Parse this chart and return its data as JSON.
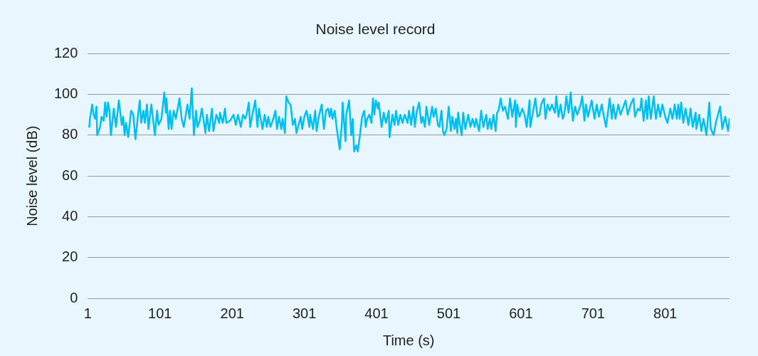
{
  "chart_data": {
    "type": "line",
    "title": "Noise level record",
    "xlabel": "Time (s)",
    "ylabel": "Noise level (dB)",
    "xlim": [
      1,
      890
    ],
    "xticks": [
      1,
      101,
      201,
      301,
      401,
      501,
      601,
      701,
      801
    ],
    "ylim": [
      0,
      120
    ],
    "yticks": [
      0,
      20,
      40,
      60,
      80,
      100,
      120
    ],
    "grid": "y",
    "legend": false,
    "marker": "none",
    "line_style": "solid",
    "series": [
      {
        "color": "#00bff3",
        "x": [
          3,
          4,
          7,
          9,
          11,
          13,
          14,
          18,
          20,
          23,
          25,
          27,
          29,
          31,
          33,
          37,
          40,
          44,
          48,
          50,
          52,
          54,
          57,
          61,
          64,
          67,
          70,
          73,
          75,
          78,
          80,
          83,
          85,
          89,
          94,
          97,
          99,
          103,
          107,
          109,
          110,
          113,
          115,
          117,
          120,
          123,
          128,
          131,
          134,
          139,
          142,
          145,
          148,
          151,
          153,
          156,
          159,
          164,
          166,
          169,
          173,
          175,
          179,
          183,
          184,
          188,
          191,
          193,
          198,
          203,
          206,
          209,
          213,
          216,
          219,
          221,
          224,
          226,
          229,
          233,
          236,
          238,
          243,
          246,
          249,
          251,
          254,
          258,
          261,
          263,
          266,
          269,
          271,
          274,
          276,
          279,
          282,
          285,
          288,
          290,
          293,
          296,
          298,
          301,
          304,
          308,
          309,
          313,
          316,
          318,
          321,
          325,
          328,
          331,
          334,
          336,
          338,
          340,
          343,
          346,
          350,
          353,
          354,
          358,
          359,
          363,
          366,
          368,
          370,
          373,
          375,
          378,
          381,
          384,
          386,
          388,
          391,
          394,
          396,
          398,
          400,
          403,
          404,
          408,
          411,
          414,
          418,
          419,
          423,
          426,
          428,
          431,
          434,
          437,
          440,
          444,
          446,
          449,
          452,
          454,
          457,
          460,
          463,
          465,
          468,
          470,
          474,
          478,
          480,
          483,
          486,
          488,
          491,
          493,
          495,
          498,
          501,
          504,
          506,
          509,
          511,
          513,
          514,
          517,
          519,
          521,
          524,
          528,
          531,
          534,
          537,
          539,
          543,
          546,
          549,
          553,
          555,
          558,
          560,
          563,
          566,
          568,
          570,
          573,
          576,
          579,
          583,
          586,
          589,
          593,
          594,
          596,
          599,
          603,
          606,
          609,
          613,
          614,
          618,
          621,
          624,
          627,
          629,
          633,
          635,
          638,
          641,
          644,
          648,
          650,
          653,
          656,
          659,
          661,
          664,
          667,
          670,
          673,
          676,
          679,
          683,
          686,
          689,
          691,
          694,
          699,
          703,
          706,
          709,
          713,
          716,
          719,
          724,
          727,
          729,
          732,
          736,
          739,
          746,
          749,
          753,
          757,
          759,
          763,
          766,
          768,
          771,
          774,
          776,
          778,
          781,
          785,
          788,
          791,
          794,
          797,
          801,
          804,
          808,
          811,
          814,
          817,
          819,
          821,
          823,
          826,
          829,
          833,
          836,
          839,
          843,
          844,
          848,
          851,
          854,
          858,
          862,
          864,
          868,
          871,
          874,
          877,
          880,
          884,
          888,
          890
        ],
        "values": [
          84,
          88,
          95,
          90,
          88,
          94,
          80,
          84,
          89,
          87,
          96,
          89,
          96,
          92,
          80,
          93,
          84,
          97,
          85,
          89,
          80,
          86,
          79,
          92,
          90,
          78,
          88,
          97,
          86,
          92,
          86,
          95,
          83,
          95,
          80,
          92,
          85,
          88,
          101,
          91,
          98,
          83,
          92,
          83,
          92,
          88,
          98,
          88,
          84,
          95,
          88,
          103,
          80,
          92,
          84,
          87,
          93,
          81,
          90,
          82,
          93,
          82,
          90,
          86,
          91,
          86,
          93,
          86,
          87,
          90,
          85,
          90,
          84,
          90,
          88,
          90,
          96,
          84,
          90,
          97,
          84,
          93,
          83,
          90,
          84,
          89,
          84,
          88,
          92,
          83,
          89,
          83,
          88,
          81,
          99,
          96,
          95,
          85,
          88,
          81,
          85,
          89,
          83,
          89,
          92,
          84,
          90,
          83,
          92,
          82,
          89,
          95,
          83,
          92,
          93,
          89,
          93,
          88,
          92,
          83,
          73,
          86,
          96,
          77,
          90,
          97,
          80,
          88,
          72,
          75,
          72,
          80,
          89,
          92,
          84,
          88,
          90,
          86,
          98,
          90,
          97,
          93,
          96,
          84,
          91,
          86,
          92,
          79,
          90,
          85,
          92,
          85,
          90,
          86,
          90,
          86,
          92,
          85,
          94,
          84,
          92,
          96,
          86,
          89,
          84,
          94,
          85,
          94,
          89,
          93,
          85,
          84,
          92,
          82,
          80,
          83,
          94,
          82,
          89,
          83,
          88,
          81,
          91,
          84,
          80,
          91,
          83,
          90,
          84,
          88,
          84,
          88,
          82,
          92,
          84,
          90,
          83,
          88,
          83,
          90,
          82,
          91,
          92,
          98,
          92,
          94,
          88,
          98,
          89,
          97,
          84,
          95,
          89,
          93,
          90,
          84,
          97,
          84,
          92,
          98,
          89,
          90,
          95,
          98,
          88,
          95,
          92,
          95,
          91,
          99,
          89,
          95,
          88,
          90,
          99,
          91,
          101,
          87,
          94,
          90,
          94,
          99,
          87,
          95,
          89,
          97,
          88,
          95,
          89,
          95,
          89,
          84,
          98,
          88,
          95,
          88,
          95,
          90,
          97,
          90,
          95,
          98,
          89,
          93,
          92,
          98,
          87,
          97,
          88,
          99,
          88,
          99,
          88,
          95,
          89,
          95,
          89,
          86,
          93,
          88,
          95,
          88,
          95,
          88,
          96,
          86,
          93,
          85,
          93,
          84,
          91,
          83,
          90,
          82,
          88,
          80,
          96,
          83,
          80,
          86,
          90,
          94,
          83,
          89,
          82,
          88
        ]
      }
    ]
  }
}
